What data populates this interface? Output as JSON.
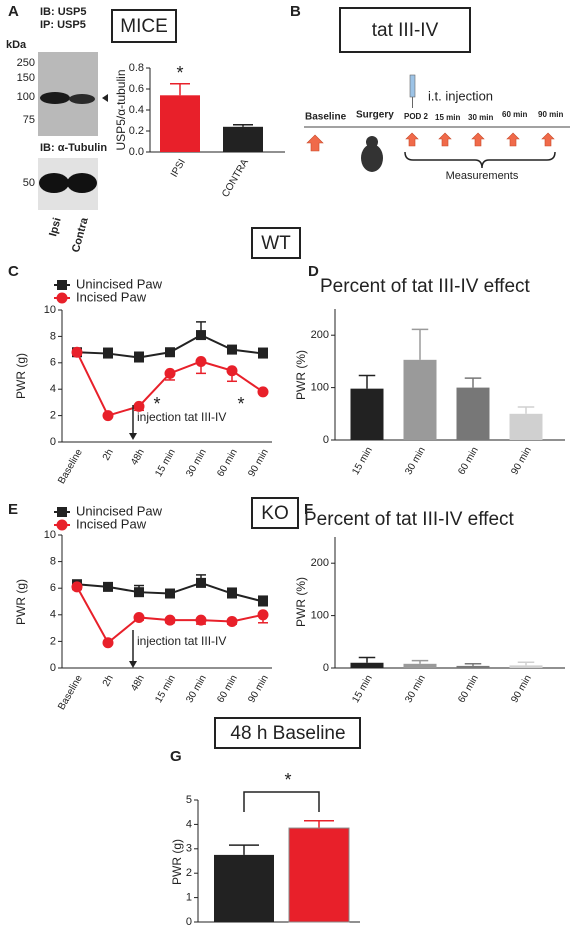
{
  "figure": {
    "panels": [
      "A",
      "B",
      "C",
      "D",
      "E",
      "F",
      "G"
    ],
    "mice": "MICE",
    "groups": [
      "WT",
      "KO"
    ],
    "blot": {
      "ib1": "IB: USP5",
      "ip1": "IP: USP5",
      "unit": "kDa",
      "markers": [
        250,
        150,
        100,
        75
      ],
      "ib2": "IB: α-Tubulin",
      "marker2": 50,
      "lanes": [
        "Ipsi",
        "Contra"
      ]
    },
    "diagram": {
      "title": "tat III-IV",
      "baseline": "Baseline",
      "surgery": "Surgery",
      "pod": "POD 2",
      "injection": "i.t. injection",
      "times": [
        "15 min",
        "30 min",
        "60 min",
        "90 min"
      ],
      "measurements": "Measurements"
    }
  },
  "chart_data": [
    {
      "type": "bar",
      "ylabel": "USP5/α-tubulin",
      "categories": [
        "IPSI",
        "CONTRA"
      ],
      "values": [
        0.54,
        0.24
      ],
      "errors": [
        0.11,
        0.02
      ],
      "colors": [
        "#e8202a",
        "#222222"
      ],
      "ylim": [
        0,
        0.8
      ],
      "yticks": [
        {
          "value": 0,
          "label": "0.0"
        },
        {
          "value": 0.2,
          "label": "0.2"
        },
        {
          "value": 0.4,
          "label": "0.4"
        },
        {
          "value": 0.6,
          "label": "0.6"
        },
        {
          "value": 0.8,
          "label": "0.8"
        }
      ],
      "annotations": [
        "*"
      ]
    },
    {
      "type": "line",
      "ylabel": "PWR (g)",
      "categories": [
        "Baseline",
        "2h",
        "48h",
        "15 min",
        "30 min",
        "60 min",
        "90 min"
      ],
      "series": [
        {
          "name": "Unincised Paw",
          "color": "#222222",
          "marker": "square",
          "values": [
            6.8,
            6.7,
            6.4,
            6.8,
            8.1,
            7.0,
            6.7
          ],
          "errors": [
            0.3,
            0.4,
            0.4,
            0.3,
            1.0,
            0.3,
            0.4
          ]
        },
        {
          "name": "Incised Paw",
          "color": "#e8202a",
          "marker": "circle",
          "values": [
            6.8,
            2.0,
            2.7,
            5.2,
            6.1,
            5.4,
            3.8
          ],
          "errors": [
            0.2,
            0.1,
            0.3,
            0.5,
            0.9,
            0.8,
            0.1
          ]
        }
      ],
      "ylim": [
        0,
        10
      ],
      "yticks": [
        0,
        2,
        4,
        6,
        8,
        10
      ],
      "annotations": [
        "injection tat III-IV",
        "*",
        "*"
      ]
    },
    {
      "type": "bar",
      "title": "Percent of tat III-IV effect",
      "ylabel": "PWR (%)",
      "categories": [
        "15 min",
        "30 min",
        "60 min",
        "90 min"
      ],
      "values": [
        98,
        153,
        100,
        50
      ],
      "errors": [
        25,
        58,
        18,
        13
      ],
      "colors": [
        "#222222",
        "#9a9a9a",
        "#777777",
        "#d0d0d0"
      ],
      "ylim": [
        0,
        250
      ],
      "yticks": [
        0,
        100,
        200
      ]
    },
    {
      "type": "line",
      "ylabel": "PWR (g)",
      "categories": [
        "Baseline",
        "2h",
        "48h",
        "15 min",
        "30 min",
        "60 min",
        "90 min"
      ],
      "series": [
        {
          "name": "Unincised Paw",
          "color": "#222222",
          "marker": "square",
          "values": [
            6.3,
            6.1,
            5.7,
            5.6,
            6.4,
            5.6,
            5.0
          ],
          "errors": [
            0.2,
            0.3,
            0.5,
            0.3,
            0.6,
            0.4,
            0.4
          ]
        },
        {
          "name": "Incised Paw",
          "color": "#e8202a",
          "marker": "circle",
          "values": [
            6.1,
            1.9,
            3.8,
            3.6,
            3.6,
            3.5,
            4.0
          ],
          "errors": [
            0.2,
            0.1,
            0.2,
            0.2,
            0.3,
            0.2,
            0.6
          ]
        }
      ],
      "ylim": [
        0,
        10
      ],
      "yticks": [
        0,
        2,
        4,
        6,
        8,
        10
      ],
      "annotations": [
        "injection tat III-IV"
      ]
    },
    {
      "type": "bar",
      "title": "Percent of tat III-IV effect",
      "ylabel": "PWR (%)",
      "categories": [
        "15 min",
        "30 min",
        "60 min",
        "90 min"
      ],
      "values": [
        10,
        8,
        4,
        5
      ],
      "errors": [
        10,
        6,
        4,
        6
      ],
      "colors": [
        "#222222",
        "#9a9a9a",
        "#777777",
        "#d0d0d0"
      ],
      "ylim": [
        0,
        250
      ],
      "yticks": [
        0,
        100,
        200
      ]
    },
    {
      "type": "bar",
      "title": "48 h Baseline",
      "ylabel": "PWR (g)",
      "categories": [
        null,
        null
      ],
      "values": [
        2.75,
        3.85
      ],
      "errors": [
        0.4,
        0.3
      ],
      "colors": [
        "#222222",
        "#e8202a"
      ],
      "ylim": [
        0,
        5
      ],
      "yticks": [
        0,
        1,
        2,
        3,
        4,
        5
      ],
      "annotations": [
        "*"
      ]
    }
  ]
}
